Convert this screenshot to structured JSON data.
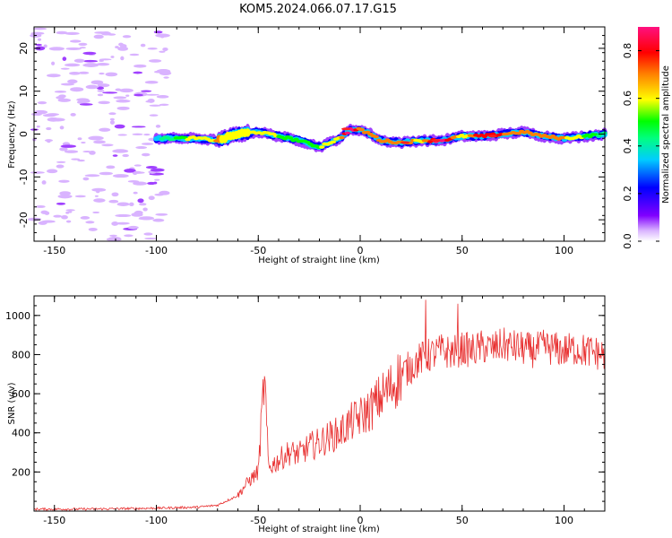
{
  "title": "KOM5.2024.066.07.17.G15",
  "chart_data": [
    {
      "type": "heatmap",
      "xlabel": "Height of straight line (km)",
      "ylabel": "Frequency (Hz)",
      "xlim": [
        -160,
        120
      ],
      "ylim": [
        -25,
        25
      ],
      "xticks": [
        -150,
        -100,
        -50,
        0,
        50,
        100
      ],
      "yticks": [
        -20,
        -10,
        0,
        10,
        20
      ],
      "colorbar": {
        "label": "Normalized spectral amplitude",
        "range": [
          0,
          0.9
        ],
        "ticks": [
          0.0,
          0.2,
          0.4,
          0.6,
          0.8
        ]
      },
      "ridge": {
        "x": [
          -100,
          -90,
          -80,
          -70,
          -60,
          -50,
          -40,
          -30,
          -20,
          -10,
          -5,
          0,
          5,
          10,
          20,
          30,
          40,
          50,
          60,
          70,
          80,
          90,
          100,
          110,
          120
        ],
        "y": [
          -1,
          -1,
          -1,
          -1.5,
          0,
          0.5,
          -0.5,
          -1.5,
          -3,
          -1,
          1,
          1,
          0,
          -1.5,
          -2,
          -1.5,
          -1.5,
          -0.5,
          -0.5,
          0,
          0.5,
          -0.5,
          -1,
          -0.5,
          0
        ],
        "amplitude": [
          0.3,
          0.45,
          0.55,
          0.6,
          0.55,
          0.55,
          0.5,
          0.45,
          0.5,
          0.55,
          0.9,
          0.65,
          0.6,
          0.6,
          0.7,
          0.55,
          0.9,
          0.5,
          0.8,
          0.7,
          0.6,
          0.7,
          0.6,
          0.5,
          0.4
        ]
      },
      "noise_region_x": [
        -160,
        -95
      ]
    },
    {
      "type": "line",
      "xlabel": "Height of straight line (km)",
      "ylabel": "SNR (v/v)",
      "xlim": [
        -160,
        120
      ],
      "ylim": [
        0,
        1100
      ],
      "xticks": [
        -150,
        -100,
        -50,
        0,
        50,
        100
      ],
      "yticks": [
        200,
        400,
        600,
        800,
        1000
      ],
      "color": "#e83030",
      "series": [
        {
          "x": [
            -160,
            -140,
            -120,
            -100,
            -80,
            -70,
            -60,
            -55,
            -50,
            -47,
            -45,
            -40,
            -35,
            -30,
            -25,
            -20,
            -15,
            -10,
            -5,
            0,
            5,
            10,
            15,
            20,
            25,
            30,
            35,
            40,
            45,
            50,
            55,
            60,
            65,
            70,
            75,
            80,
            85,
            90,
            95,
            100,
            105,
            110,
            115,
            120
          ],
          "y": [
            10,
            10,
            12,
            15,
            20,
            30,
            80,
            150,
            200,
            690,
            220,
            260,
            300,
            290,
            330,
            350,
            380,
            400,
            450,
            480,
            520,
            580,
            630,
            700,
            740,
            780,
            800,
            820,
            810,
            830,
            820,
            840,
            830,
            850,
            840,
            830,
            820,
            840,
            830,
            820,
            830,
            820,
            810,
            800
          ]
        }
      ],
      "spikes": [
        {
          "x": -47,
          "y": 690
        },
        {
          "x": 32,
          "y": 1080
        },
        {
          "x": 48,
          "y": 1060
        }
      ]
    }
  ]
}
